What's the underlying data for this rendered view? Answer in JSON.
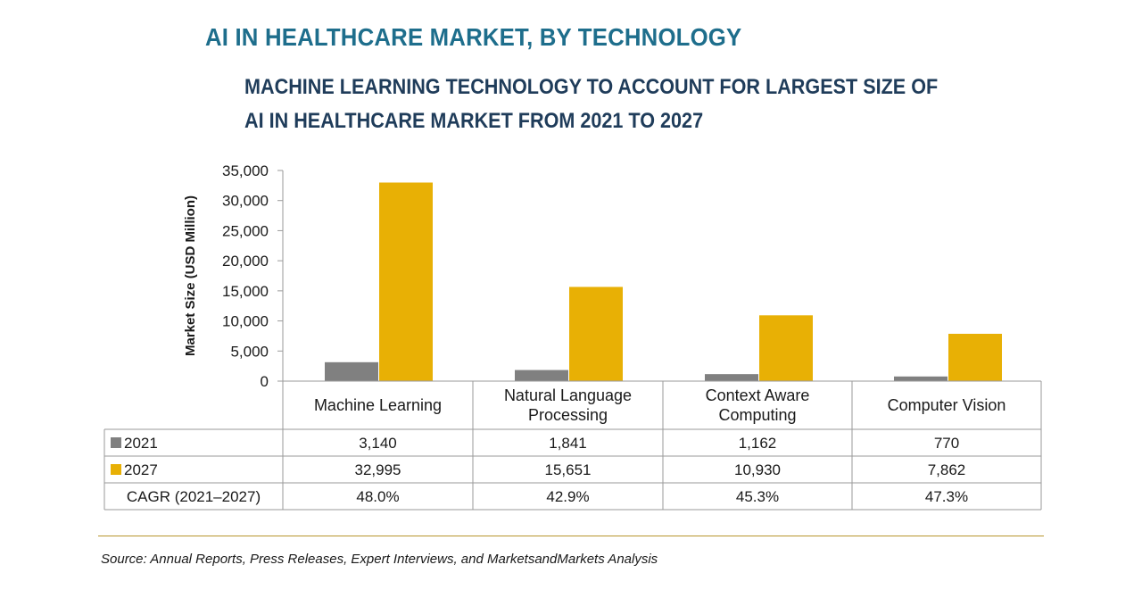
{
  "chart_data": {
    "type": "bar",
    "title": "AI IN HEALTHCARE MARKET, BY TECHNOLOGY",
    "subtitle_lines": [
      "MACHINE LEARNING TECHNOLOGY TO ACCOUNT FOR LARGEST SIZE OF",
      "AI IN HEALTHCARE MARKET FROM 2021 TO 2027"
    ],
    "ylabel": "Market Size (USD Million)",
    "ylim": [
      0,
      35000
    ],
    "yticks": [
      "0",
      "5,000",
      "10,000",
      "15,000",
      "20,000",
      "25,000",
      "30,000",
      "35,000"
    ],
    "ytick_values": [
      0,
      5000,
      10000,
      15000,
      20000,
      25000,
      30000,
      35000
    ],
    "categories": [
      [
        "Machine Learning"
      ],
      [
        "Natural Language",
        "Processing"
      ],
      [
        "Context Aware",
        "Computing"
      ],
      [
        "Computer Vision"
      ]
    ],
    "series": [
      {
        "name": "2021",
        "color": "#808080",
        "values": [
          3140,
          1841,
          1162,
          770
        ],
        "labels": [
          "3,140",
          "1,841",
          "1,162",
          "770"
        ]
      },
      {
        "name": "2027",
        "color": "#e8b005",
        "values": [
          32995,
          15651,
          10930,
          7862
        ],
        "labels": [
          "32,995",
          "15,651",
          "10,930",
          "7,862"
        ]
      }
    ],
    "table_extra_row": {
      "label": "CAGR (2021–2027)",
      "values": [
        "48.0%",
        "42.9%",
        "45.3%",
        "47.3%"
      ]
    },
    "grid": false,
    "legend": "table"
  },
  "source": "Source: Annual Reports, Press Releases, Expert Interviews, and MarketsandMarkets Analysis"
}
